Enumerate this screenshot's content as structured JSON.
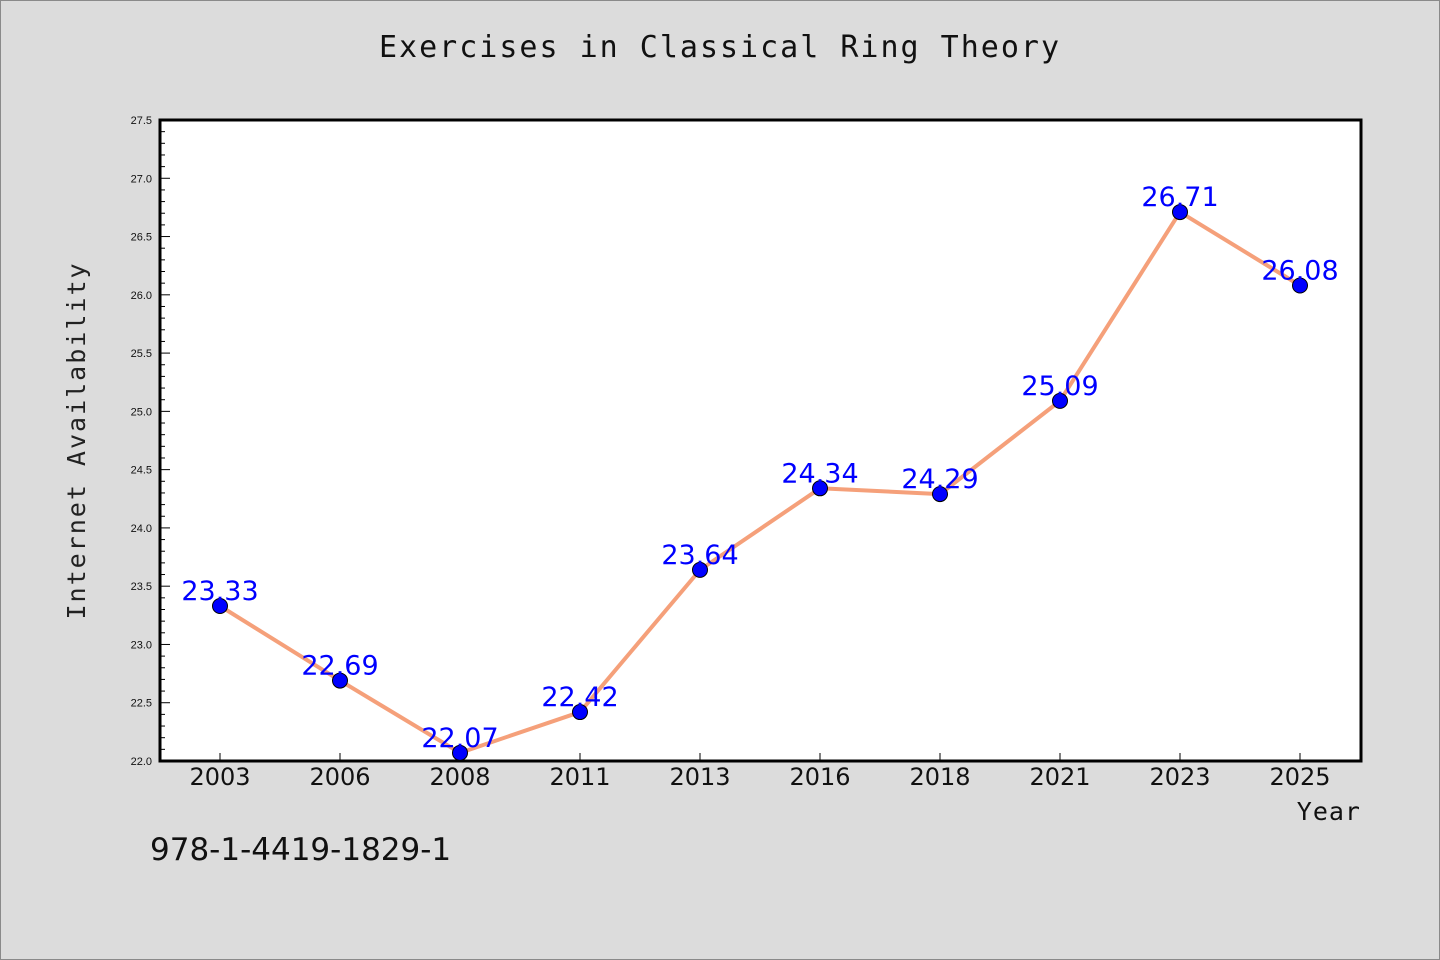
{
  "title": "Exercises in Classical Ring Theory",
  "caption": "978-1-4419-1829-1",
  "chart_data": {
    "type": "line",
    "title": "Exercises in Classical Ring Theory",
    "xlabel": "Year",
    "ylabel": "Internet Availability",
    "categories": [
      "2003",
      "2006",
      "2008",
      "2011",
      "2013",
      "2016",
      "2018",
      "2021",
      "2023",
      "2025"
    ],
    "series": [
      {
        "values": [
          23.33,
          22.69,
          22.07,
          22.42,
          23.64,
          24.34,
          24.29,
          25.09,
          26.71,
          26.08
        ]
      }
    ],
    "data_labels": [
      "23.33",
      "22.69",
      "22.07",
      "22.42",
      "23.64",
      "24.34",
      "24.29",
      "25.09",
      "26.71",
      "26.08"
    ],
    "ylim": [
      22.0,
      27.5
    ],
    "yticks": [
      "22.0",
      "22.5",
      "23.0",
      "23.5",
      "24.0",
      "24.5",
      "25.0",
      "25.5",
      "26.0",
      "26.5",
      "27.0",
      "27.5"
    ],
    "grid": false,
    "legend": "none",
    "colors": {
      "line": "#f5a07a",
      "marker": "#0000ff",
      "label": "#0000ff",
      "background": "#dcdcdc",
      "plot_background": "#ffffff"
    }
  }
}
